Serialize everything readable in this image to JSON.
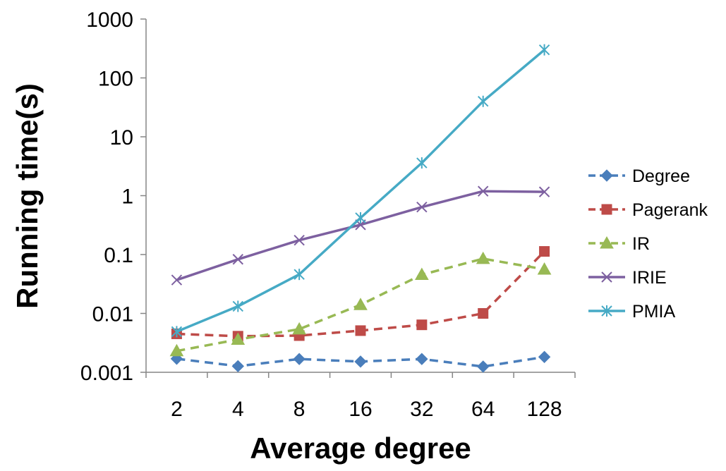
{
  "chart_data": {
    "type": "line",
    "title": "",
    "xlabel": "Average degree",
    "ylabel": "Running time(s)",
    "yscale": "log",
    "ylim": [
      0.001,
      1000
    ],
    "y_tick_labels": [
      "0.001",
      "0.01",
      "0.1",
      "1",
      "10",
      "100",
      "1000"
    ],
    "y_tick_values": [
      0.001,
      0.01,
      0.1,
      1,
      10,
      100,
      1000
    ],
    "categories": [
      "2",
      "4",
      "8",
      "16",
      "32",
      "64",
      "128"
    ],
    "grid": false,
    "legend_position": "right",
    "series": [
      {
        "name": "Degree",
        "color": "#4a7ebb",
        "dash": "dashed",
        "marker": "diamond",
        "values": [
          0.0017,
          0.00127,
          0.00168,
          0.00152,
          0.00168,
          0.00125,
          0.00182
        ]
      },
      {
        "name": "Pagerank",
        "color": "#be4b48",
        "dash": "dashed",
        "marker": "square",
        "values": [
          0.0045,
          0.0041,
          0.0042,
          0.0051,
          0.0064,
          0.01,
          0.113
        ]
      },
      {
        "name": "IR",
        "color": "#98b954",
        "dash": "dashed",
        "marker": "triangle",
        "values": [
          0.0023,
          0.0036,
          0.0054,
          0.014,
          0.0455,
          0.085,
          0.056
        ]
      },
      {
        "name": "IRIE",
        "color": "#7d60a0",
        "dash": "solid",
        "marker": "x",
        "values": [
          0.037,
          0.083,
          0.175,
          0.32,
          0.64,
          1.19,
          1.16
        ]
      },
      {
        "name": "PMIA",
        "color": "#46aac5",
        "dash": "solid",
        "marker": "asterisk",
        "values": [
          0.0049,
          0.0132,
          0.046,
          0.42,
          3.6,
          40,
          300
        ]
      }
    ]
  }
}
